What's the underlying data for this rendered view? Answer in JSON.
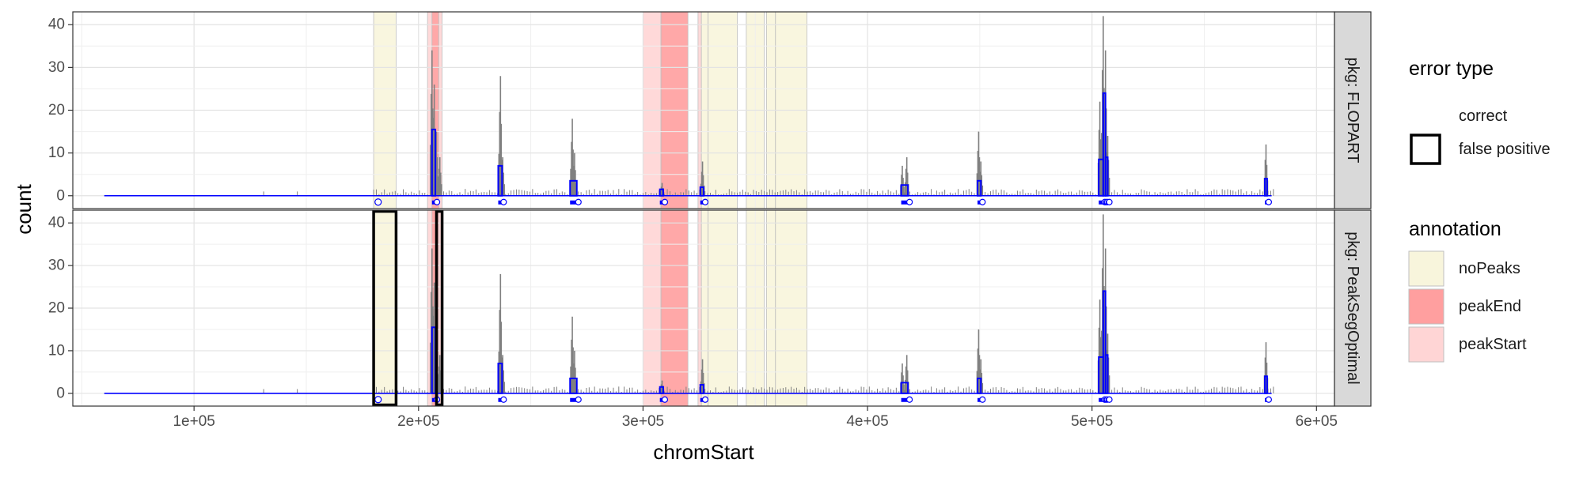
{
  "chart_data": {
    "type": "area",
    "xlabel": "chromStart",
    "ylabel": "count",
    "xlim": [
      46000,
      608000
    ],
    "ylim": [
      -3,
      43
    ],
    "x_ticks": [
      {
        "value": 100000,
        "label": "1e+05"
      },
      {
        "value": 200000,
        "label": "2e+05"
      },
      {
        "value": 300000,
        "label": "3e+05"
      },
      {
        "value": 400000,
        "label": "4e+05"
      },
      {
        "value": 500000,
        "label": "5e+05"
      },
      {
        "value": 600000,
        "label": "6e+05"
      }
    ],
    "y_ticks": [
      {
        "value": 0,
        "label": "0"
      },
      {
        "value": 10,
        "label": "10"
      },
      {
        "value": 20,
        "label": "20"
      },
      {
        "value": 30,
        "label": "30"
      },
      {
        "value": 40,
        "label": "40"
      }
    ],
    "grid": true,
    "facets": [
      {
        "label": "pkg: FLOPART"
      },
      {
        "label": "pkg: PeakSegOptimal"
      }
    ],
    "annotations": [
      {
        "type": "noPeaks",
        "start": 180000,
        "end": 190000
      },
      {
        "type": "peakStart",
        "start": 204000,
        "end": 206000
      },
      {
        "type": "peakEnd",
        "start": 206000,
        "end": 209000
      },
      {
        "type": "peakStart",
        "start": 209000,
        "end": 210500
      },
      {
        "type": "peakStart",
        "start": 300000,
        "end": 308000
      },
      {
        "type": "peakEnd",
        "start": 308000,
        "end": 320000
      },
      {
        "type": "peakStart",
        "start": 324500,
        "end": 326000
      },
      {
        "type": "noPeaks",
        "start": 326000,
        "end": 329000
      },
      {
        "type": "noPeaks",
        "start": 329000,
        "end": 342000
      },
      {
        "type": "noPeaks",
        "start": 346000,
        "end": 354000
      },
      {
        "type": "noPeaks",
        "start": 355000,
        "end": 359000
      },
      {
        "type": "noPeaks",
        "start": 359000,
        "end": 373000
      }
    ],
    "coverage_peaks": [
      {
        "x": 206000,
        "height": 34
      },
      {
        "x": 207000,
        "height": 26
      },
      {
        "x": 208000,
        "height": 15
      },
      {
        "x": 209500,
        "height": 9
      },
      {
        "x": 236500,
        "height": 28
      },
      {
        "x": 237500,
        "height": 9
      },
      {
        "x": 268500,
        "height": 18
      },
      {
        "x": 269500,
        "height": 10
      },
      {
        "x": 308500,
        "height": 3
      },
      {
        "x": 326500,
        "height": 8
      },
      {
        "x": 415500,
        "height": 7
      },
      {
        "x": 417500,
        "height": 9
      },
      {
        "x": 449500,
        "height": 15
      },
      {
        "x": 450500,
        "height": 8
      },
      {
        "x": 503500,
        "height": 22
      },
      {
        "x": 505000,
        "height": 42
      },
      {
        "x": 506000,
        "height": 34
      },
      {
        "x": 507000,
        "height": 14
      },
      {
        "x": 577500,
        "height": 12
      }
    ],
    "segments": [
      {
        "x0": 60000,
        "x1": 178000,
        "y": 0
      },
      {
        "x0": 206000,
        "x1": 207500,
        "y": 15.5
      },
      {
        "x0": 235500,
        "x1": 237200,
        "y": 7
      },
      {
        "x0": 267500,
        "x1": 270500,
        "y": 3.5
      },
      {
        "x0": 307500,
        "x1": 309000,
        "y": 1.5
      },
      {
        "x0": 325500,
        "x1": 327000,
        "y": 2
      },
      {
        "x0": 415000,
        "x1": 418000,
        "y": 2.5
      },
      {
        "x0": 449000,
        "x1": 450500,
        "y": 3.5
      },
      {
        "x0": 503000,
        "x1": 505000,
        "y": 8.5
      },
      {
        "x0": 505000,
        "x1": 506000,
        "y": 24
      },
      {
        "x0": 506000,
        "x1": 507000,
        "y": 9
      },
      {
        "x0": 577000,
        "x1": 578000,
        "y": 4
      }
    ],
    "errors": [
      {
        "facet": 1,
        "start": 180000,
        "end": 190000,
        "type": "false positive"
      },
      {
        "facet": 1,
        "start": 208000,
        "end": 210500,
        "type": "false positive"
      }
    ],
    "legends": [
      {
        "title": "error type",
        "entries": [
          "correct",
          "false positive"
        ]
      },
      {
        "title": "annotation",
        "entries": [
          "noPeaks",
          "peakEnd",
          "peakStart"
        ]
      }
    ],
    "colors": {
      "noPeaks": "#f8f5dc",
      "peakEnd": "#ff9f9f",
      "peakStart": "#ffd5d5",
      "coverage": "#808080",
      "segments": "#0000ff",
      "strip": "#d9d9d9"
    }
  }
}
